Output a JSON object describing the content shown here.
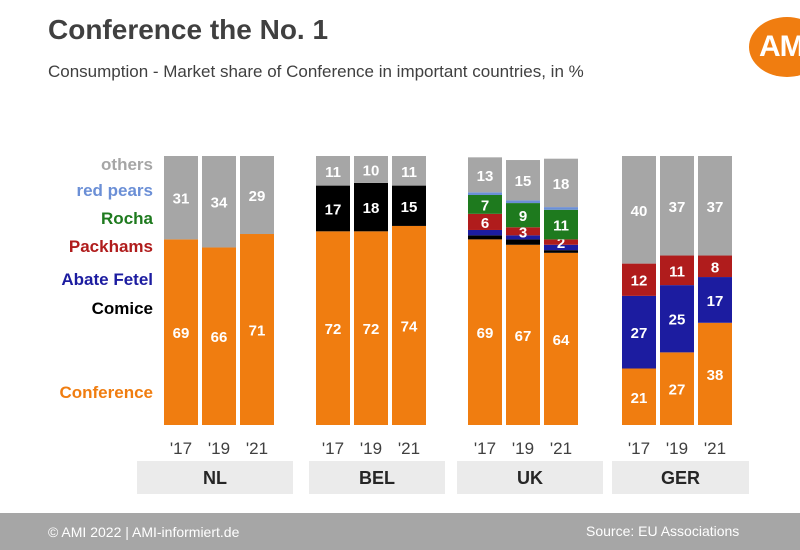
{
  "header": {
    "title": "Conference the No. 1",
    "subtitle": "Consumption - Market share of Conference in important countries, in %",
    "logo_text": "AMI",
    "logo_color": "#f07d10"
  },
  "footer": {
    "left": "© AMI 2022 | AMI-informiert.de",
    "right": "Source: EU Associations"
  },
  "chart_data": {
    "type": "bar",
    "stacked": true,
    "ylim": [
      0,
      100
    ],
    "legend_position": "left",
    "series": [
      {
        "name": "Conference",
        "color": "#f07d10",
        "label_color": "#ffffff"
      },
      {
        "name": "Comice",
        "color": "#000000",
        "label_color": "#ffffff"
      },
      {
        "name": "Abate Fetel",
        "color": "#1c1ca0",
        "label_color": "#ffffff"
      },
      {
        "name": "Packhams",
        "color": "#b01c1c",
        "label_color": "#ffffff"
      },
      {
        "name": "Rocha",
        "color": "#1e7a1e",
        "label_color": "#ffffff"
      },
      {
        "name": "red pears",
        "color": "#6b8fd6",
        "label_color": "#ffffff"
      },
      {
        "name": "others",
        "color": "#a6a6a6",
        "label_color": "#ffffff"
      }
    ],
    "groups": [
      {
        "name": "NL",
        "years": [
          "'17",
          "'19",
          "'21"
        ],
        "bars": [
          {
            "values": {
              "Conference": 69,
              "others": 31
            },
            "labels": {
              "Conference": "69",
              "others": "31"
            }
          },
          {
            "values": {
              "Conference": 66,
              "others": 34
            },
            "labels": {
              "Conference": "66",
              "others": "34"
            }
          },
          {
            "values": {
              "Conference": 71,
              "others": 29
            },
            "labels": {
              "Conference": "71",
              "others": "29"
            }
          }
        ]
      },
      {
        "name": "BEL",
        "years": [
          "'17",
          "'19",
          "'21"
        ],
        "bars": [
          {
            "values": {
              "Conference": 72,
              "Comice": 17,
              "others": 11
            },
            "labels": {
              "Conference": "72",
              "Comice": "17",
              "others": "11"
            }
          },
          {
            "values": {
              "Conference": 72,
              "Comice": 18,
              "others": 10
            },
            "labels": {
              "Conference": "72",
              "Comice": "18",
              "others": "10"
            }
          },
          {
            "values": {
              "Conference": 74,
              "Comice": 15,
              "others": 11
            },
            "labels": {
              "Conference": "74",
              "Comice": "15",
              "others": "11"
            }
          }
        ]
      },
      {
        "name": "UK",
        "years": [
          "'17",
          "'19",
          "'21"
        ],
        "bars": [
          {
            "values": {
              "Conference": 69,
              "Comice": 1.5,
              "Abate Fetel": 2,
              "Packhams": 6,
              "Rocha": 7,
              "red pears": 1,
              "others": 13
            },
            "labels": {
              "Conference": "69",
              "Packhams": "6",
              "Rocha": "7",
              "others": "13"
            }
          },
          {
            "values": {
              "Conference": 67,
              "Comice": 2,
              "Abate Fetel": 1.5,
              "Packhams": 3,
              "Rocha": 9,
              "red pears": 1,
              "others": 15
            },
            "labels": {
              "Conference": "67",
              "Packhams": "3",
              "Rocha": "9",
              "others": "15"
            }
          },
          {
            "values": {
              "Conference": 64,
              "Comice": 1,
              "Abate Fetel": 2,
              "Packhams": 2,
              "Rocha": 11,
              "red pears": 1,
              "others": 18
            },
            "labels": {
              "Conference": "64",
              "Packhams": "2",
              "Rocha": "11",
              "others": "18"
            }
          }
        ]
      },
      {
        "name": "GER",
        "years": [
          "'17",
          "'19",
          "'21"
        ],
        "bars": [
          {
            "values": {
              "Conference": 21,
              "Abate Fetel": 27,
              "Packhams": 12,
              "others": 40
            },
            "labels": {
              "Conference": "21",
              "Abate Fetel": "27",
              "Packhams": "12",
              "others": "40"
            }
          },
          {
            "values": {
              "Conference": 27,
              "Abate Fetel": 25,
              "Packhams": 11,
              "others": 37
            },
            "labels": {
              "Conference": "27",
              "Abate Fetel": "25",
              "Packhams": "11",
              "others": "37"
            }
          },
          {
            "values": {
              "Conference": 38,
              "Abate Fetel": 17,
              "Packhams": 8,
              "others": 37
            },
            "labels": {
              "Conference": "38",
              "Abate Fetel": "17",
              "Packhams": "8",
              "others": "37"
            }
          }
        ]
      }
    ]
  }
}
